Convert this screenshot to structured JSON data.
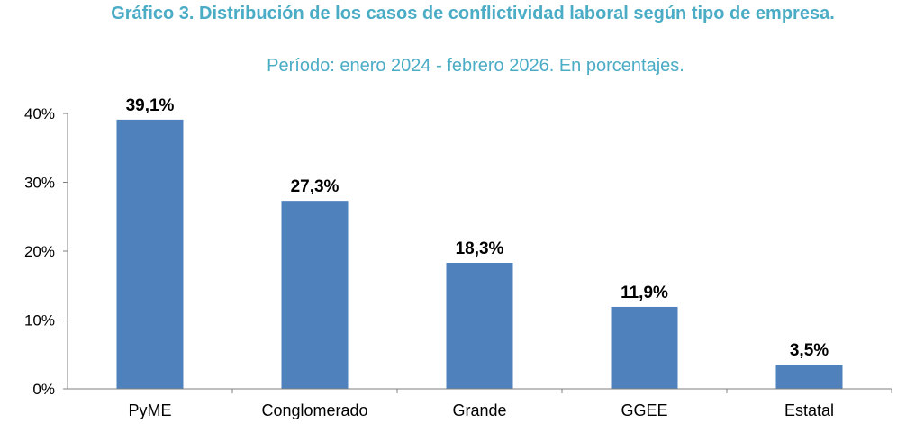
{
  "chart_data": {
    "type": "bar",
    "title": "Gráfico 3.  Distribución de los casos de conflictividad laboral según tipo de empresa.",
    "subtitle": "Período: enero 2024 - febrero 2026. En porcentajes.",
    "categories": [
      "PyME",
      "Conglomerado",
      "Grande",
      "GGEE",
      "Estatal"
    ],
    "values": [
      39.1,
      27.3,
      18.3,
      11.9,
      3.5
    ],
    "data_labels": [
      "39,1%",
      "27,3%",
      "18,3%",
      "11,9%",
      "3,5%"
    ],
    "y_ticks": [
      0,
      10,
      20,
      30,
      40
    ],
    "y_tick_labels": [
      "0%",
      "10%",
      "20%",
      "30%",
      "40%"
    ],
    "ylim": [
      0,
      40
    ],
    "xlabel": "",
    "ylabel": "",
    "grid": false,
    "legend": "none",
    "colors": {
      "bar": "#4f81bd",
      "title": "#4bacc6",
      "axis": "#7f7f7f",
      "text": "#000000"
    }
  }
}
